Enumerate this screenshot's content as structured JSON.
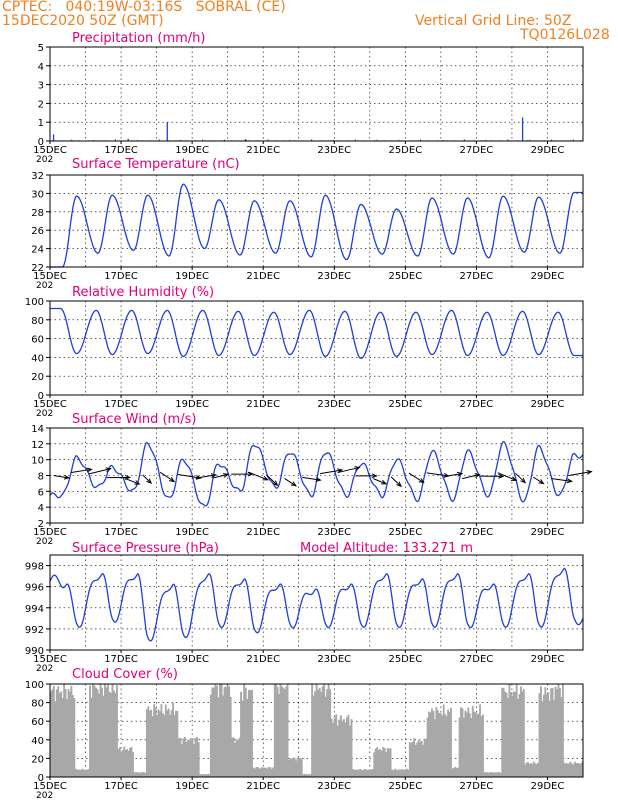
{
  "header": {
    "line1": "CPTEC:   040:19W-03:16S   SOBRAL (CE)",
    "line2": "15DEC2020 50Z (GMT)",
    "grid_line": "Vertical Grid Line: 50Z",
    "code": "TQ0126L028",
    "text_color": "#f08020"
  },
  "colors": {
    "title": "#e0007a",
    "line": "#1f3fd8",
    "cloud": "#a8a8a8",
    "wind_arrow": "#000000"
  },
  "x_ticks": [
    "15DEC",
    "17DEC",
    "19DEC",
    "21DEC",
    "23DEC",
    "25DEC",
    "27DEC",
    "29DEC"
  ],
  "x_tick_days": [
    0,
    2,
    4,
    6,
    8,
    10,
    12,
    14
  ],
  "year_fragment": "202",
  "chart_data": [
    {
      "id": "precip",
      "type": "bar",
      "title": "Precipitation (mm/h)",
      "ylim": [
        0,
        5
      ],
      "yticks": [
        "0",
        "1",
        "2",
        "3",
        "4",
        "5"
      ],
      "ytick_values": [
        0,
        1,
        2,
        3,
        4,
        5
      ],
      "x_unit": "days since 15DEC",
      "points": [
        [
          0.1,
          0.35
        ],
        [
          2.2,
          0.12
        ],
        [
          3.3,
          1.0
        ],
        [
          5.5,
          0.1
        ],
        [
          13.3,
          1.25
        ]
      ]
    },
    {
      "id": "temp",
      "type": "line",
      "title": "Surface Temperature (nC)",
      "ylim": [
        22,
        32
      ],
      "yticks": [
        "22",
        "24",
        "26",
        "28",
        "30",
        "32"
      ],
      "ytick_values": [
        22,
        24,
        26,
        28,
        30,
        32
      ],
      "daily_min": [
        22.0,
        23.5,
        23.8,
        23.2,
        24.0,
        23.3,
        23.5,
        23.1,
        22.8,
        23.4,
        23.2,
        23.4,
        23.0,
        23.6,
        23.5
      ],
      "daily_max": [
        29.7,
        29.8,
        29.8,
        31.0,
        29.3,
        29.2,
        29.2,
        29.8,
        28.8,
        28.3,
        29.5,
        29.5,
        29.7,
        29.6,
        30.1
      ]
    },
    {
      "id": "rh",
      "type": "line",
      "title": "Relative Humidity (%)",
      "ylim": [
        0,
        100
      ],
      "yticks": [
        "0",
        "20",
        "40",
        "60",
        "80",
        "100"
      ],
      "ytick_values": [
        0,
        20,
        40,
        60,
        80,
        100
      ],
      "daily_min": [
        44,
        43,
        44,
        41,
        42,
        42,
        43,
        41,
        39,
        41,
        43,
        42,
        42,
        43,
        42
      ],
      "daily_max": [
        92,
        90,
        90,
        90,
        90,
        89,
        88,
        90,
        89,
        88,
        88,
        90,
        88,
        89,
        88
      ]
    },
    {
      "id": "wind",
      "type": "line",
      "title": "Surface Wind (m/s)",
      "ylim": [
        2,
        14
      ],
      "yticks": [
        "2",
        "4",
        "6",
        "8",
        "10",
        "12",
        "14"
      ],
      "ytick_values": [
        2,
        4,
        6,
        8,
        10,
        12,
        14
      ],
      "daily_min": [
        5.5,
        6.5,
        6.0,
        5.0,
        4.0,
        6.0,
        6.5,
        5.5,
        5.5,
        5.5,
        5.0,
        5.0,
        5.5,
        4.8,
        5.5
      ],
      "daily_max": [
        10.2,
        9.0,
        12.0,
        10.0,
        9.5,
        12.0,
        11.0,
        11.0,
        9.5,
        10.0,
        11.0,
        11.0,
        12.0,
        11.5,
        10.5
      ]
    },
    {
      "id": "pres",
      "type": "line",
      "title": "Surface Pressure (hPa)",
      "extra_label": "Model Altitude: 133.271  m",
      "ylim": [
        990,
        999
      ],
      "yticks": [
        "990",
        "992",
        "994",
        "996",
        "998"
      ],
      "ytick_values": [
        990,
        992,
        994,
        996,
        998
      ],
      "daily_min": [
        992.5,
        993.0,
        991.2,
        991.5,
        992.5,
        992.0,
        992.5,
        992.5,
        992.5,
        992.5,
        992.5,
        992.5,
        992.5,
        992.5,
        993.0
      ],
      "daily_max": [
        996.5,
        997.5,
        997.5,
        996.5,
        997.5,
        997.0,
        996.5,
        996.0,
        996.5,
        997.5,
        997.0,
        997.5,
        996.5,
        997.5,
        998.0
      ]
    },
    {
      "id": "cloud",
      "type": "bar",
      "title": "Cloud Cover (%)",
      "ylim": [
        0,
        100
      ],
      "yticks": [
        "0",
        "20",
        "40",
        "60",
        "80",
        "100"
      ],
      "ytick_values": [
        0,
        20,
        40,
        60,
        80,
        100
      ],
      "x_unit": "days since 15DEC",
      "segments": [
        [
          0.0,
          0.7,
          92
        ],
        [
          0.7,
          1.1,
          8
        ],
        [
          1.1,
          1.9,
          96
        ],
        [
          1.9,
          2.35,
          30
        ],
        [
          2.35,
          2.7,
          5
        ],
        [
          2.7,
          3.6,
          72
        ],
        [
          3.6,
          4.2,
          40
        ],
        [
          4.2,
          4.5,
          3
        ],
        [
          4.5,
          5.1,
          96
        ],
        [
          5.1,
          5.35,
          40
        ],
        [
          5.35,
          5.7,
          92
        ],
        [
          5.7,
          6.3,
          10
        ],
        [
          6.3,
          6.7,
          98
        ],
        [
          6.7,
          7.1,
          20
        ],
        [
          7.1,
          7.35,
          3
        ],
        [
          7.35,
          7.9,
          96
        ],
        [
          7.9,
          8.5,
          62
        ],
        [
          8.5,
          9.1,
          8
        ],
        [
          9.1,
          9.6,
          30
        ],
        [
          9.6,
          10.1,
          8
        ],
        [
          10.1,
          10.6,
          38
        ],
        [
          10.6,
          11.3,
          70
        ],
        [
          11.3,
          11.5,
          10
        ],
        [
          11.5,
          12.2,
          70
        ],
        [
          12.2,
          12.7,
          5
        ],
        [
          12.7,
          13.35,
          92
        ],
        [
          13.35,
          13.75,
          15
        ],
        [
          13.75,
          14.2,
          90
        ],
        [
          14.2,
          14.45,
          96
        ],
        [
          14.45,
          15.0,
          15
        ]
      ]
    }
  ]
}
